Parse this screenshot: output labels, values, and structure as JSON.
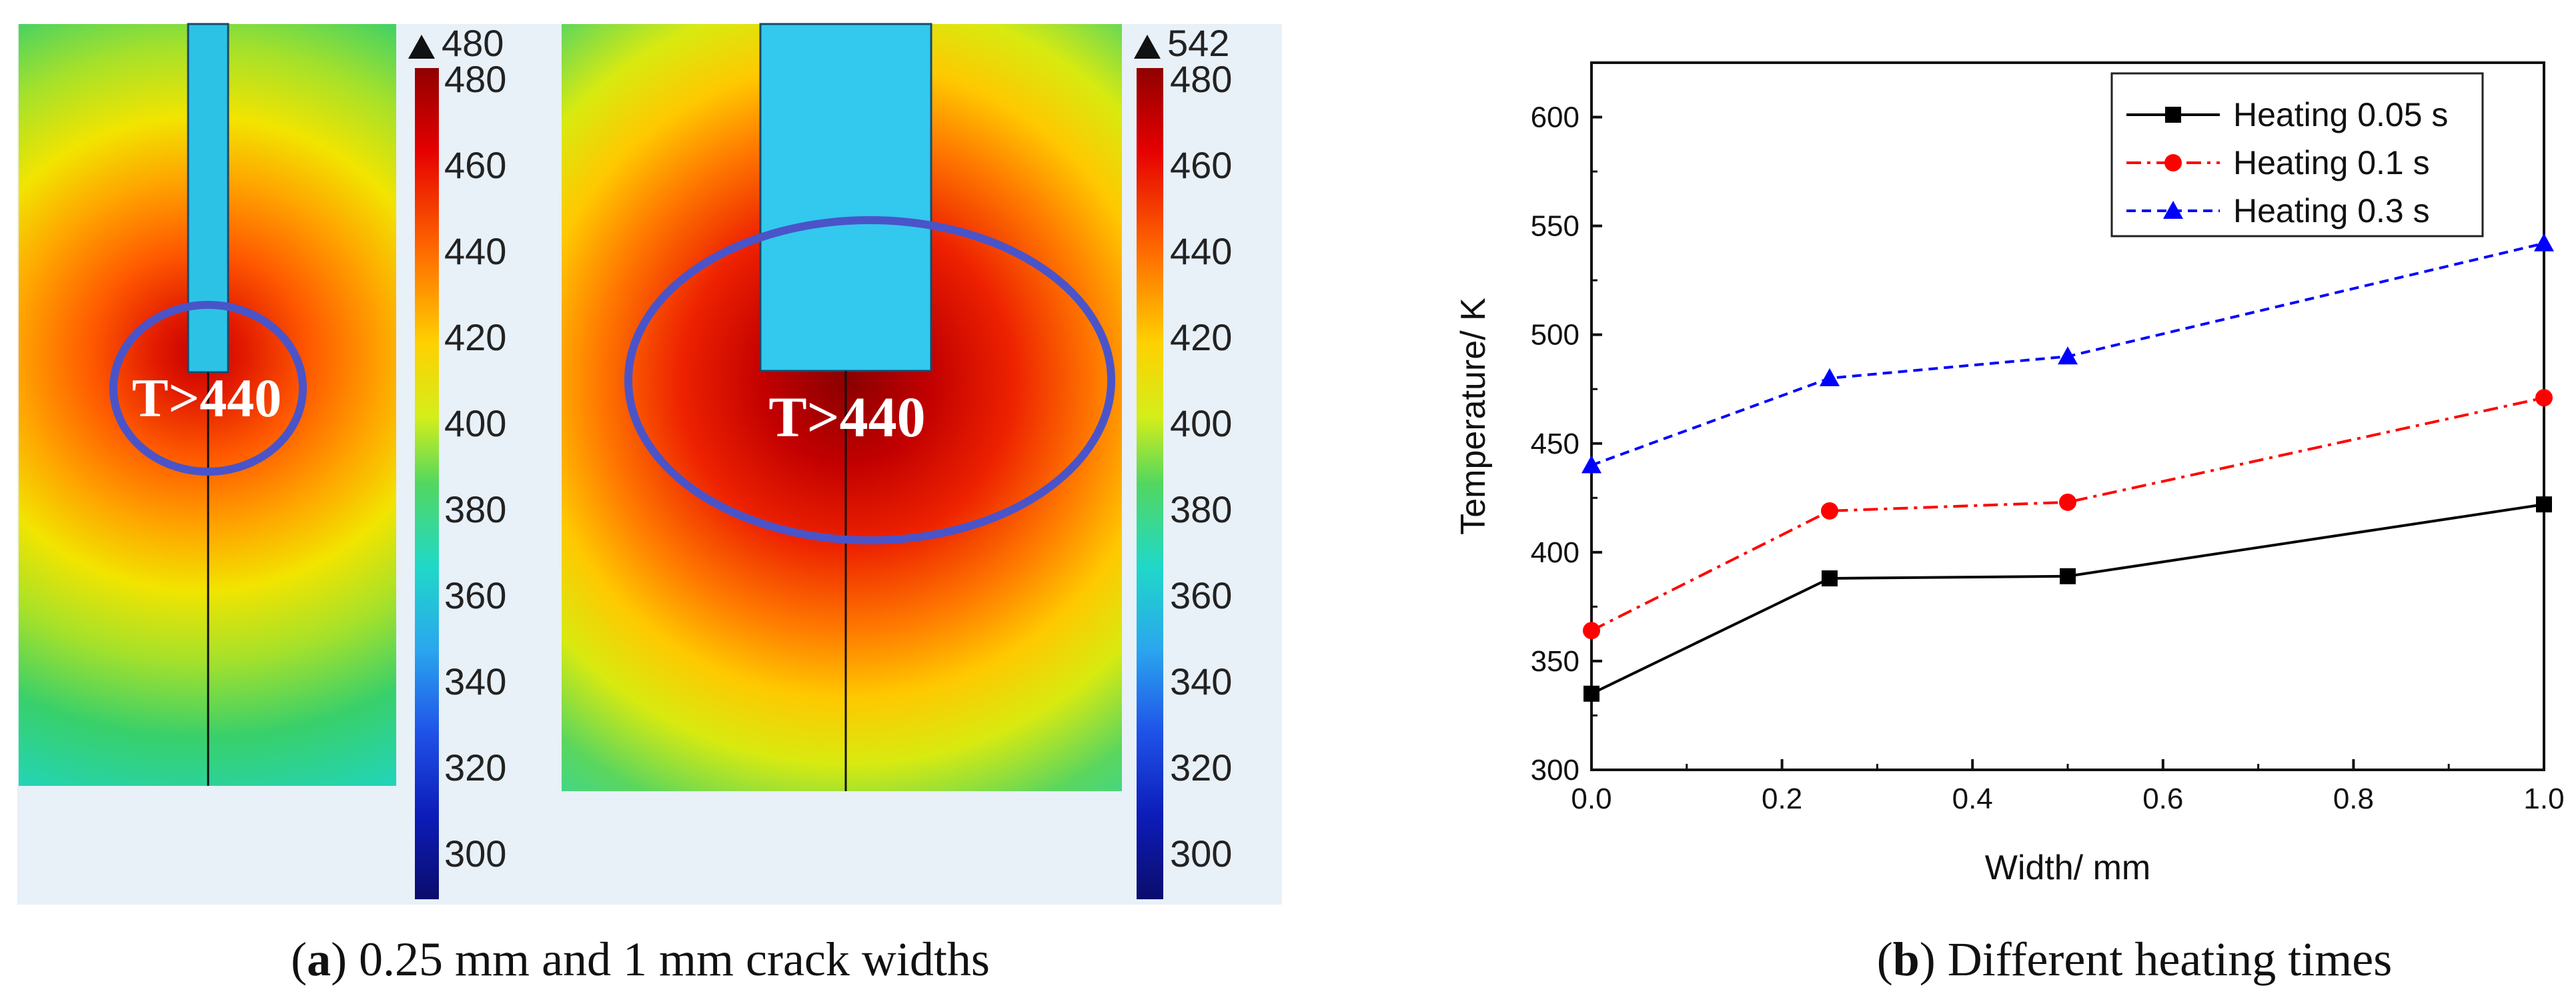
{
  "heatmap_panel": {
    "colors": {
      "panel_bg": "#e8f0f8",
      "crack": "#2cc2e6",
      "crack_wide": "#33c8ee",
      "ellipse": "#4a54c8"
    },
    "colorbar_1": {
      "max_marker": "480",
      "ticks": [
        "480",
        "460",
        "440",
        "420",
        "400",
        "380",
        "360",
        "340",
        "320",
        "300"
      ]
    },
    "colorbar_2": {
      "max_marker": "542",
      "ticks": [
        "480",
        "460",
        "440",
        "420",
        "400",
        "380",
        "360",
        "340",
        "320",
        "300"
      ]
    },
    "map_1_label": "T>440",
    "map_2_label": "T>440",
    "caption": {
      "bold": "a",
      "rest": ") 0.25 mm and 1 mm crack widths",
      "open": "("
    }
  },
  "chart_data": {
    "type": "line",
    "x": [
      0.0,
      0.25,
      0.5,
      1.0
    ],
    "series": [
      {
        "name": "Heating 0.05 s",
        "values": [
          335,
          388,
          389,
          422
        ],
        "color": "#000000",
        "marker": "square",
        "dash": "solid"
      },
      {
        "name": "Heating 0.1 s",
        "values": [
          364,
          419,
          423,
          471
        ],
        "color": "#ff0000",
        "marker": "circle",
        "dash": "dashdot"
      },
      {
        "name": "Heating 0.3 s",
        "values": [
          440,
          480,
          490,
          542
        ],
        "color": "#0000ff",
        "marker": "triangle",
        "dash": "dash"
      }
    ],
    "xlabel": "Width/ mm",
    "ylabel": "Temperature/ K",
    "xlim": [
      0.0,
      1.0
    ],
    "ylim": [
      300,
      625
    ],
    "xticks": [
      "0.0",
      "0.2",
      "0.4",
      "0.6",
      "0.8",
      "1.0"
    ],
    "yticks": [
      "300",
      "350",
      "400",
      "450",
      "500",
      "550",
      "600"
    ],
    "legend_position": "top-right",
    "caption": {
      "bold": "b",
      "rest": ") Different heating times",
      "open": "("
    }
  }
}
